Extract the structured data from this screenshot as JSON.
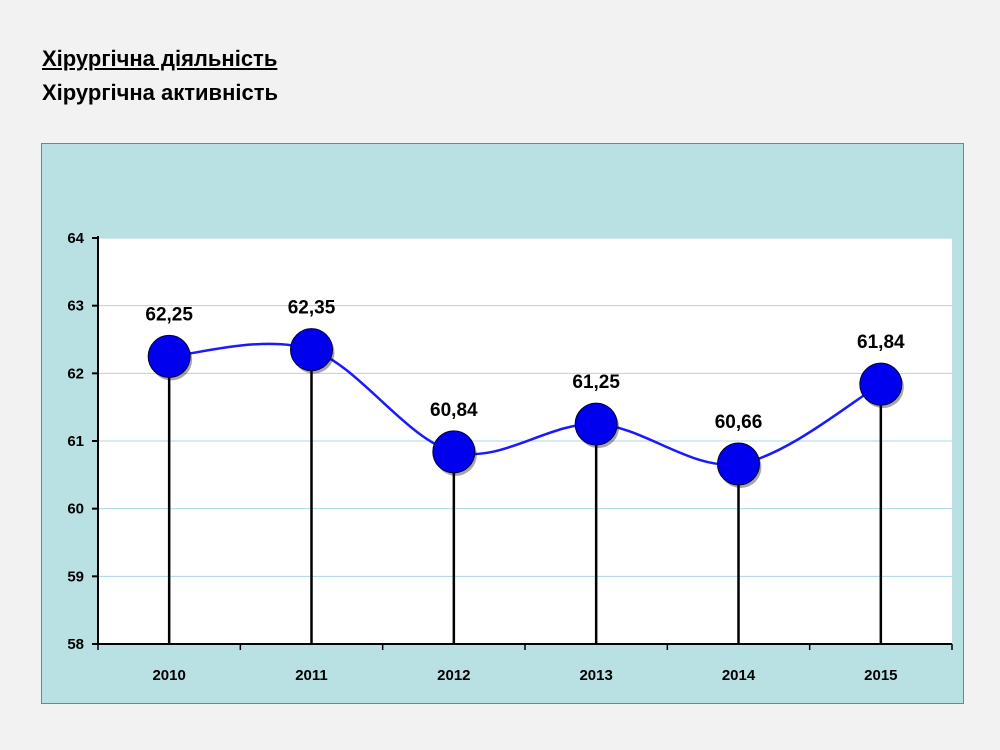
{
  "header": {
    "title": "Хірургічна діяльність",
    "subtitle": "Хірургічна активність"
  },
  "colors": {
    "frame_bg": "#b9e0e3",
    "plot_bg": "#ffffff",
    "gridline": "#a8d8e0",
    "line": "#1a1aff",
    "marker": "#0000ee",
    "stem": "#000000"
  },
  "chart_data": {
    "type": "line",
    "categories": [
      "2010",
      "2011",
      "2012",
      "2013",
      "2014",
      "2015"
    ],
    "values": [
      62.25,
      62.35,
      60.84,
      61.25,
      60.66,
      61.84
    ],
    "data_labels": [
      "62,25",
      "62,35",
      "60,84",
      "61,25",
      "60,66",
      "61,84"
    ],
    "y_ticks": [
      "58",
      "59",
      "60",
      "61",
      "62",
      "63",
      "64"
    ],
    "ylim": [
      58,
      64
    ],
    "grid": true,
    "smooth": true,
    "drop_lines": true,
    "legend": "none"
  }
}
